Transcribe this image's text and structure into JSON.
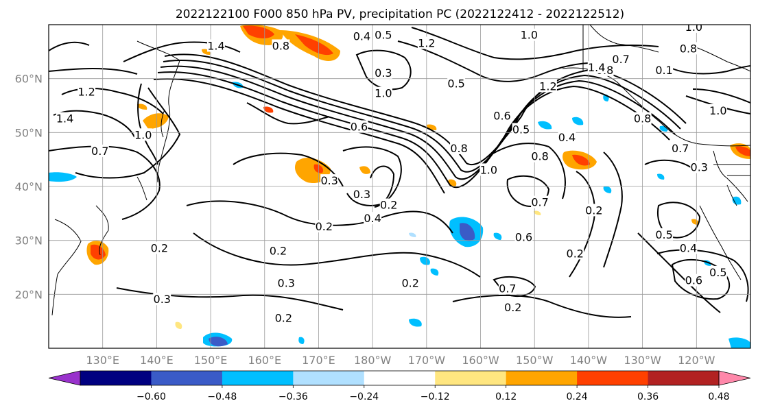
{
  "chart_data": {
    "type": "map-contour",
    "title": "2022122100 F000 850 hPa PV, precipitation PC (2022122412 - 2022122512)",
    "lat_labels": [
      "60°N",
      "50°N",
      "40°N",
      "30°N",
      "20°N"
    ],
    "lat_values": [
      60,
      50,
      40,
      30,
      20
    ],
    "lon_labels": [
      "130°E",
      "140°E",
      "150°E",
      "160°E",
      "170°E",
      "180°W",
      "170°W",
      "160°W",
      "150°W",
      "140°W",
      "130°W",
      "120°W"
    ],
    "lon_values": [
      130,
      140,
      150,
      160,
      170,
      180,
      190,
      200,
      210,
      220,
      230,
      240
    ],
    "lon_range": [
      120,
      250
    ],
    "lat_range": [
      10,
      70
    ],
    "grid": true,
    "colorbar": {
      "orientation": "horizontal",
      "extend": "both",
      "levels": [
        -0.6,
        -0.48,
        -0.36,
        -0.24,
        -0.12,
        0.12,
        0.24,
        0.36,
        0.48,
        0.6
      ],
      "tick_labels": [
        "−0.60",
        "−0.48",
        "−0.36",
        "−0.24",
        "−0.12",
        "0.12",
        "0.24",
        "0.36",
        "0.48",
        "0.60"
      ],
      "colors": [
        "#9932cc",
        "#000080",
        "#3a5bc7",
        "#00bfff",
        "#b0e0ff",
        "#ffffff",
        "#ffe680",
        "#ffa500",
        "#ff4000",
        "#b22222",
        "#ff88aa"
      ]
    },
    "contour_labels": [
      {
        "text": "1.4",
        "lon": 151.0,
        "lat": 66.0
      },
      {
        "text": "0.8",
        "lon": 163.0,
        "lat": 66.0
      },
      {
        "text": "0.4",
        "lon": 178.0,
        "lat": 67.8
      },
      {
        "text": "0.3",
        "lon": 182.0,
        "lat": 61.0
      },
      {
        "text": "1.0",
        "lon": 182.0,
        "lat": 57.2
      },
      {
        "text": "1.2",
        "lon": 127.0,
        "lat": 57.5
      },
      {
        "text": "1.4",
        "lon": 123.0,
        "lat": 52.5
      },
      {
        "text": "1.0",
        "lon": 137.5,
        "lat": 49.5
      },
      {
        "text": "0.7",
        "lon": 129.5,
        "lat": 46.5
      },
      {
        "text": "0.6",
        "lon": 177.5,
        "lat": 51.0
      },
      {
        "text": "0.3",
        "lon": 172.0,
        "lat": 41.0
      },
      {
        "text": "0.3",
        "lon": 178.0,
        "lat": 38.5
      },
      {
        "text": "0.4",
        "lon": 180.0,
        "lat": 34.0
      },
      {
        "text": "0.2",
        "lon": 183.0,
        "lat": 36.5
      },
      {
        "text": "0.2",
        "lon": 171.0,
        "lat": 32.5
      },
      {
        "text": "0.2",
        "lon": 162.5,
        "lat": 28.0
      },
      {
        "text": "0.3",
        "lon": 164.0,
        "lat": 22.0
      },
      {
        "text": "0.2",
        "lon": 140.5,
        "lat": 28.5
      },
      {
        "text": "0.3",
        "lon": 141.0,
        "lat": 19.0
      },
      {
        "text": "0.2",
        "lon": 163.5,
        "lat": 15.5
      },
      {
        "text": "0.2",
        "lon": 187.0,
        "lat": 22.0
      },
      {
        "text": "0.5",
        "lon": 195.5,
        "lat": 59.0
      },
      {
        "text": "0.6",
        "lon": 204.0,
        "lat": 53.0
      },
      {
        "text": "0.5",
        "lon": 207.5,
        "lat": 50.5
      },
      {
        "text": "0.8",
        "lon": 196.0,
        "lat": 47.0
      },
      {
        "text": "1.0",
        "lon": 201.5,
        "lat": 43.0
      },
      {
        "text": "0.8",
        "lon": 211.0,
        "lat": 45.5
      },
      {
        "text": "0.7",
        "lon": 211.0,
        "lat": 37.0
      },
      {
        "text": "0.6",
        "lon": 208.0,
        "lat": 30.5
      },
      {
        "text": "0.2",
        "lon": 221.0,
        "lat": 35.5
      },
      {
        "text": "0.2",
        "lon": 217.5,
        "lat": 27.5
      },
      {
        "text": "0.2",
        "lon": 206.0,
        "lat": 17.5
      },
      {
        "text": "0.7",
        "lon": 205.0,
        "lat": 21.0
      },
      {
        "text": "0.4",
        "lon": 216.0,
        "lat": 49.0
      },
      {
        "text": "0.8",
        "lon": 223.0,
        "lat": 61.5
      },
      {
        "text": "0.7",
        "lon": 226.0,
        "lat": 63.5
      },
      {
        "text": "1.4",
        "lon": 221.5,
        "lat": 62.0
      },
      {
        "text": "1.0",
        "lon": 209.0,
        "lat": 68.0
      },
      {
        "text": "1.2",
        "lon": 212.5,
        "lat": 58.5
      },
      {
        "text": "0.8",
        "lon": 230.0,
        "lat": 52.5
      },
      {
        "text": "1.0",
        "lon": 239.5,
        "lat": 69.5
      },
      {
        "text": "0.8",
        "lon": 238.5,
        "lat": 65.5
      },
      {
        "text": "0.1",
        "lon": 234.0,
        "lat": 61.5
      },
      {
        "text": "1.0",
        "lon": 244.0,
        "lat": 54.0
      },
      {
        "text": "0.7",
        "lon": 237.0,
        "lat": 47.0
      },
      {
        "text": "0.3",
        "lon": 240.5,
        "lat": 43.5
      },
      {
        "text": "0.5",
        "lon": 234.0,
        "lat": 31.0
      },
      {
        "text": "0.6",
        "lon": 239.5,
        "lat": 22.5
      },
      {
        "text": "0.5",
        "lon": 244.0,
        "lat": 24.0
      },
      {
        "text": "0.4",
        "lon": 238.5,
        "lat": 28.5
      },
      {
        "text": "0.5",
        "lon": 182.0,
        "lat": 68.0
      },
      {
        "text": "1.2",
        "lon": 190.0,
        "lat": 66.5
      }
    ]
  }
}
